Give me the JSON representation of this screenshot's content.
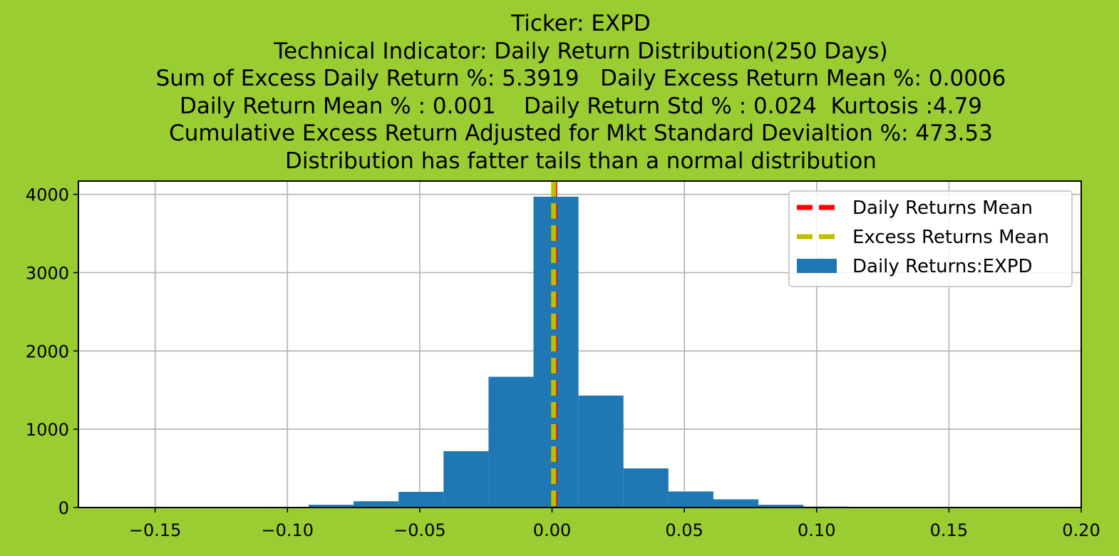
{
  "title_lines": [
    "Ticker: EXPD",
    "Technical Indicator: Daily Return Distribution(250 Days)",
    "Sum of Excess Daily Return %: 5.3919   Daily Excess Return Mean %: 0.0006",
    "Daily Return Mean % : 0.001    Daily Return Std % : 0.024  Kurtosis :4.79",
    "Cumulative Excess Return Adjusted for Mkt Standard Devialtion %: 473.53",
    "Distribution has fatter tails than a normal distribution"
  ],
  "chart_data": {
    "type": "bar",
    "subtype": "histogram",
    "bins": [
      {
        "x0": -0.109,
        "x1": -0.092,
        "count": 8
      },
      {
        "x0": -0.092,
        "x1": -0.075,
        "count": 35
      },
      {
        "x0": -0.075,
        "x1": -0.058,
        "count": 80
      },
      {
        "x0": -0.058,
        "x1": -0.041,
        "count": 200
      },
      {
        "x0": -0.041,
        "x1": -0.024,
        "count": 720
      },
      {
        "x0": -0.024,
        "x1": -0.007,
        "count": 1670
      },
      {
        "x0": -0.007,
        "x1": 0.01,
        "count": 3970
      },
      {
        "x0": 0.01,
        "x1": 0.027,
        "count": 1430
      },
      {
        "x0": 0.027,
        "x1": 0.044,
        "count": 500
      },
      {
        "x0": 0.044,
        "x1": 0.061,
        "count": 205
      },
      {
        "x0": 0.061,
        "x1": 0.078,
        "count": 105
      },
      {
        "x0": 0.078,
        "x1": 0.095,
        "count": 35
      },
      {
        "x0": 0.095,
        "x1": 0.112,
        "count": 12
      }
    ],
    "vlines": [
      {
        "name": "Daily Returns Mean",
        "x": 0.001,
        "color": "#FF0000",
        "style": "dashed"
      },
      {
        "name": "Excess Returns Mean",
        "x": 0.0006,
        "color": "#BFBF00",
        "style": "dashed"
      }
    ],
    "bar_series_name": "Daily Returns:EXPD",
    "bar_color": "#1F77B4",
    "xlim": [
      -0.179,
      0.2
    ],
    "ylim": [
      0,
      4170
    ],
    "xticks": [
      {
        "value": -0.15,
        "label": "−0.15"
      },
      {
        "value": -0.1,
        "label": "−0.10"
      },
      {
        "value": -0.05,
        "label": "−0.05"
      },
      {
        "value": 0.0,
        "label": "0.00"
      },
      {
        "value": 0.05,
        "label": "0.05"
      },
      {
        "value": 0.1,
        "label": "0.10"
      },
      {
        "value": 0.15,
        "label": "0.15"
      },
      {
        "value": 0.2,
        "label": "0.20"
      }
    ],
    "yticks": [
      {
        "value": 0,
        "label": "0"
      },
      {
        "value": 1000,
        "label": "1000"
      },
      {
        "value": 2000,
        "label": "2000"
      },
      {
        "value": 3000,
        "label": "3000"
      },
      {
        "value": 4000,
        "label": "4000"
      }
    ],
    "grid": true,
    "legend": {
      "position": "upper right",
      "entries": [
        "Daily Returns Mean",
        "Excess Returns Mean",
        "Daily Returns:EXPD"
      ]
    }
  }
}
